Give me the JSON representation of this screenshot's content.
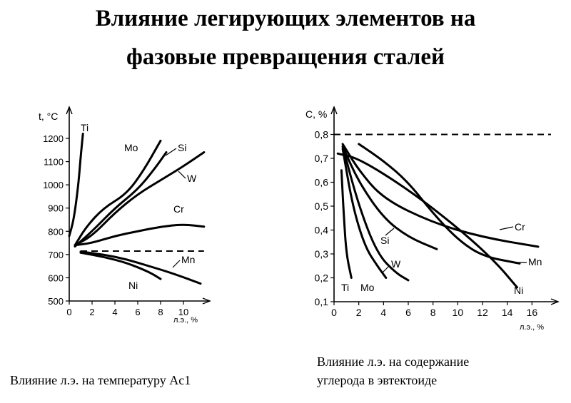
{
  "title": {
    "line1": "Влияние легирующих элементов на",
    "line2": "фазовые превращения сталей"
  },
  "captions": {
    "left": "Влияние л.э. на температуру Ac1",
    "right_line1": "Влияние л.э. на содержание",
    "right_line2": "углерода в эвтектоиде"
  },
  "chart_data": [
    {
      "type": "line",
      "ylabel": "t, °C",
      "xlabel": "л.э., %",
      "xlim": [
        0,
        12
      ],
      "ylim": [
        500,
        1200
      ],
      "x_ticks": [
        0,
        2,
        4,
        6,
        8,
        10
      ],
      "y_ticks": [
        500,
        600,
        700,
        800,
        900,
        1000,
        1100,
        1200
      ],
      "reference_line": {
        "y": 715,
        "style": "dashed"
      },
      "series": [
        {
          "name": "Ti",
          "x": [
            0,
            0.4,
            0.8,
            1.0,
            1.2
          ],
          "y": [
            780,
            850,
            1000,
            1120,
            1220
          ]
        },
        {
          "name": "Mo",
          "x": [
            0.5,
            1.5,
            3,
            5,
            6.5,
            8
          ],
          "y": [
            740,
            820,
            900,
            960,
            1060,
            1190
          ]
        },
        {
          "name": "Si",
          "x": [
            0.5,
            2,
            4,
            6,
            7.5,
            8.5
          ],
          "y": [
            735,
            800,
            900,
            980,
            1070,
            1140
          ]
        },
        {
          "name": "W",
          "x": [
            0.5,
            2,
            4,
            6,
            8,
            10,
            11.8
          ],
          "y": [
            740,
            780,
            880,
            960,
            1020,
            1080,
            1140
          ]
        },
        {
          "name": "Cr",
          "x": [
            0.5,
            2,
            4,
            6,
            8,
            10,
            11.8
          ],
          "y": [
            740,
            750,
            780,
            800,
            820,
            830,
            820
          ]
        },
        {
          "name": "Mn",
          "x": [
            1,
            3,
            5,
            7,
            9,
            11.5
          ],
          "y": [
            712,
            700,
            680,
            650,
            620,
            575
          ]
        },
        {
          "name": "Ni",
          "x": [
            1,
            3,
            5,
            7,
            8
          ],
          "y": [
            708,
            690,
            665,
            625,
            595
          ]
        }
      ],
      "labels": [
        "Ti",
        "Mo",
        "Si",
        "W",
        "Cr",
        "Mn",
        "Ni"
      ]
    },
    {
      "type": "line",
      "ylabel": "C, %",
      "xlabel": "л.э., %",
      "xlim": [
        0,
        18
      ],
      "ylim": [
        0.1,
        0.9
      ],
      "x_ticks": [
        0,
        2,
        4,
        6,
        8,
        10,
        12,
        14,
        16
      ],
      "y_ticks": [
        0.1,
        0.2,
        0.3,
        0.4,
        0.5,
        0.6,
        0.7,
        0.8
      ],
      "reference_line": {
        "y": 0.8,
        "style": "dashed"
      },
      "series": [
        {
          "name": "Ti",
          "x": [
            0.6,
            0.8,
            1.0,
            1.4
          ],
          "y": [
            0.65,
            0.45,
            0.3,
            0.2
          ]
        },
        {
          "name": "Mo",
          "x": [
            0.7,
            1.5,
            2.5,
            3.5,
            4.2
          ],
          "y": [
            0.74,
            0.5,
            0.33,
            0.25,
            0.2
          ]
        },
        {
          "name": "W",
          "x": [
            0.7,
            2,
            3.5,
            5,
            6
          ],
          "y": [
            0.75,
            0.5,
            0.3,
            0.22,
            0.19
          ]
        },
        {
          "name": "Si",
          "x": [
            0.7,
            2,
            4,
            6,
            8.3
          ],
          "y": [
            0.75,
            0.6,
            0.45,
            0.37,
            0.32
          ]
        },
        {
          "name": "Cr",
          "x": [
            0.7,
            2,
            4,
            8,
            12,
            16.5
          ],
          "y": [
            0.76,
            0.65,
            0.53,
            0.43,
            0.37,
            0.33
          ]
        },
        {
          "name": "Mn",
          "x": [
            2,
            4,
            6,
            8,
            10,
            12,
            15
          ],
          "y": [
            0.76,
            0.69,
            0.6,
            0.47,
            0.36,
            0.29,
            0.26
          ]
        },
        {
          "name": "Ni",
          "x": [
            0.3,
            2,
            6,
            10,
            13,
            14.8
          ],
          "y": [
            0.72,
            0.7,
            0.57,
            0.41,
            0.27,
            0.16
          ]
        }
      ],
      "labels": [
        "Ti",
        "Mo",
        "W",
        "Si",
        "Cr",
        "Mn",
        "Ni"
      ]
    }
  ]
}
